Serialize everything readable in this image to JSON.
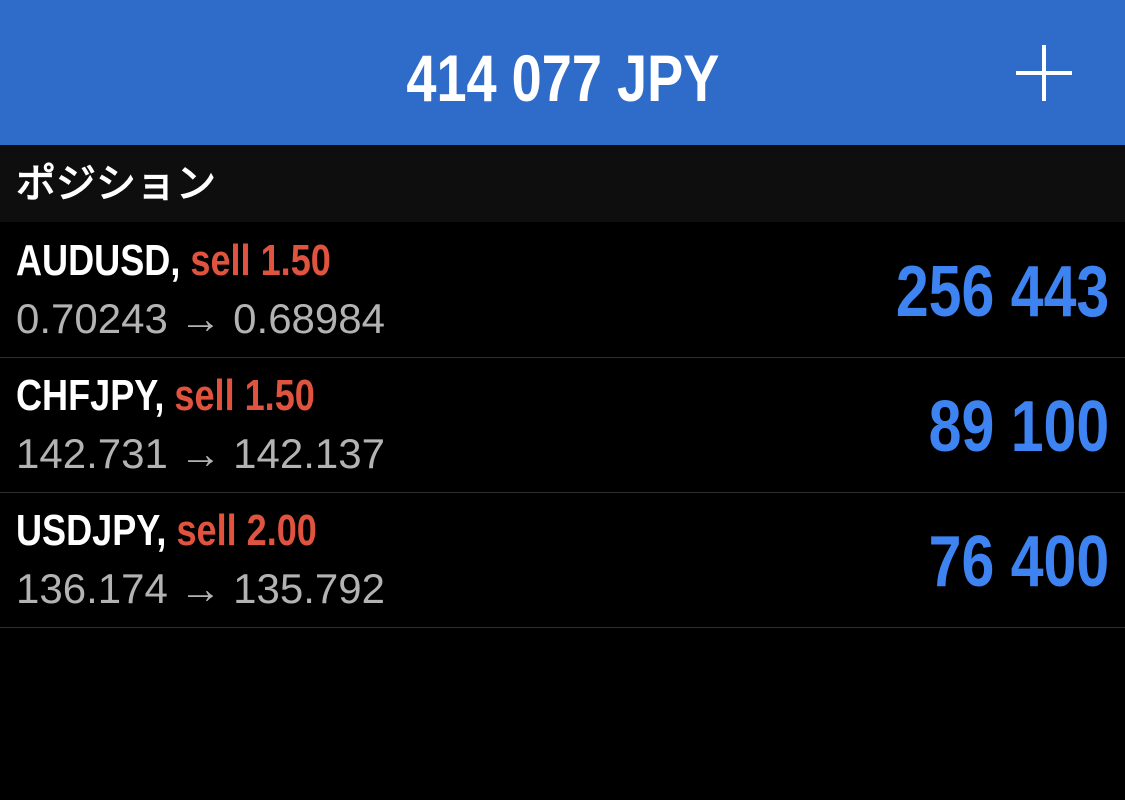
{
  "header": {
    "balance": "414 077 JPY",
    "add_icon": "plus-icon"
  },
  "section": {
    "title": "ポジション"
  },
  "colors": {
    "header_bg": "#2f6bc9",
    "sell": "#e0533f",
    "profit": "#3d84f2",
    "price": "#b3b3b3"
  },
  "positions": [
    {
      "symbol": "AUDUSD,",
      "side": "sell 1.50",
      "open": "0.70243",
      "arrow": "→",
      "current": "0.68984",
      "profit": "256 443"
    },
    {
      "symbol": "CHFJPY,",
      "side": "sell 1.50",
      "open": "142.731",
      "arrow": "→",
      "current": "142.137",
      "profit": "89 100"
    },
    {
      "symbol": "USDJPY,",
      "side": "sell 2.00",
      "open": "136.174",
      "arrow": "→",
      "current": "135.792",
      "profit": "76 400"
    }
  ]
}
